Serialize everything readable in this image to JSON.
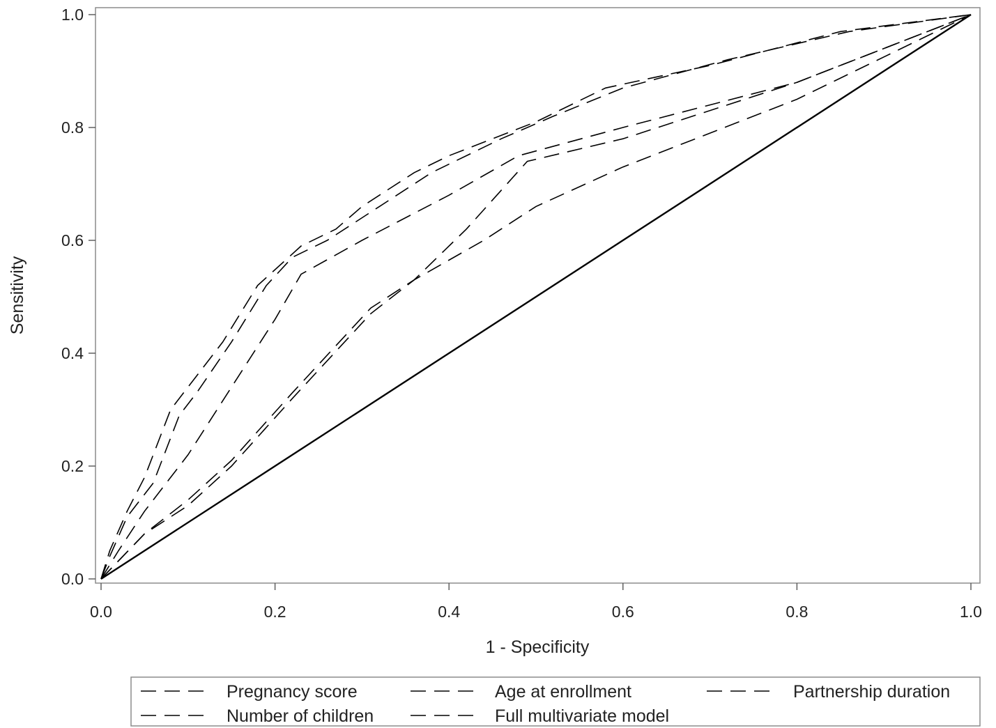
{
  "chart_data": {
    "type": "line",
    "title": "",
    "xlabel": "1 - Specificity",
    "ylabel": "Sensitivity",
    "xlim": [
      0.0,
      1.0
    ],
    "ylim": [
      0.0,
      1.0
    ],
    "xticks": [
      "0.0",
      "0.2",
      "0.4",
      "0.6",
      "0.8",
      "1.0"
    ],
    "yticks": [
      "0.0",
      "0.2",
      "0.4",
      "0.6",
      "0.8",
      "1.0"
    ],
    "grid": false,
    "legend_position": "bottom",
    "reference_line": {
      "x": [
        0.0,
        1.0
      ],
      "y": [
        0.0,
        1.0
      ]
    },
    "series": [
      {
        "name": "Pregnancy score",
        "x": [
          0.0,
          0.01,
          0.03,
          0.05,
          0.08,
          0.1,
          0.14,
          0.18,
          0.23,
          0.27,
          0.3,
          0.36,
          0.4,
          0.45,
          0.5,
          0.58,
          0.7,
          0.85,
          1.0
        ],
        "y": [
          0.0,
          0.05,
          0.12,
          0.18,
          0.3,
          0.34,
          0.42,
          0.52,
          0.59,
          0.62,
          0.66,
          0.72,
          0.75,
          0.78,
          0.81,
          0.87,
          0.91,
          0.97,
          1.0
        ]
      },
      {
        "name": "Age at enrollment",
        "x": [
          0.0,
          0.01,
          0.03,
          0.06,
          0.09,
          0.11,
          0.15,
          0.19,
          0.22,
          0.26,
          0.32,
          0.38,
          0.42,
          0.46,
          0.52,
          0.6,
          0.72,
          0.86,
          1.0
        ],
        "y": [
          0.0,
          0.04,
          0.11,
          0.17,
          0.29,
          0.33,
          0.42,
          0.52,
          0.57,
          0.6,
          0.66,
          0.72,
          0.75,
          0.78,
          0.82,
          0.87,
          0.92,
          0.97,
          1.0
        ]
      },
      {
        "name": "Partnership duration",
        "x": [
          0.0,
          0.02,
          0.05,
          0.1,
          0.15,
          0.2,
          0.23,
          0.3,
          0.4,
          0.48,
          0.6,
          0.8,
          1.0
        ],
        "y": [
          0.0,
          0.05,
          0.12,
          0.22,
          0.34,
          0.46,
          0.54,
          0.6,
          0.68,
          0.75,
          0.8,
          0.88,
          1.0
        ]
      },
      {
        "name": "Number of children",
        "x": [
          0.0,
          0.05,
          0.1,
          0.15,
          0.22,
          0.31,
          0.36,
          0.42,
          0.49,
          0.6,
          0.8,
          1.0
        ],
        "y": [
          0.0,
          0.08,
          0.14,
          0.21,
          0.33,
          0.48,
          0.53,
          0.62,
          0.74,
          0.78,
          0.88,
          1.0
        ]
      },
      {
        "name": "Full multivariate model",
        "x": [
          0.0,
          0.05,
          0.1,
          0.15,
          0.22,
          0.31,
          0.36,
          0.44,
          0.5,
          0.6,
          0.8,
          1.0
        ],
        "y": [
          0.0,
          0.08,
          0.13,
          0.2,
          0.32,
          0.47,
          0.53,
          0.6,
          0.66,
          0.73,
          0.85,
          1.0
        ]
      }
    ]
  }
}
